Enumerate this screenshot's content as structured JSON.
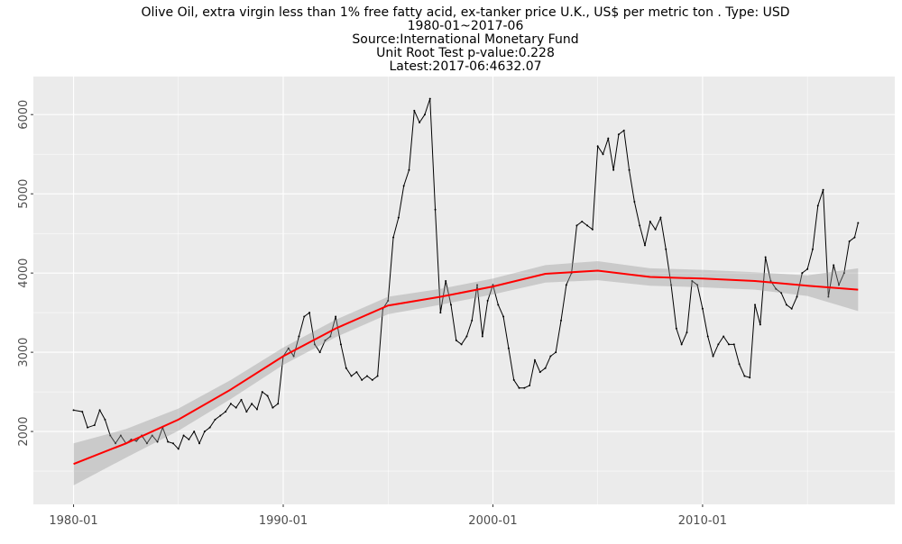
{
  "chart_data": {
    "type": "line",
    "title": [
      "Olive Oil, extra virgin less than 1% free fatty acid, ex-tanker price U.K., US$ per metric ton . Type: USD",
      "1980-01~2017-06",
      "Source:International Monetary Fund",
      "Unit Root Test p-value:0.228",
      "Latest:2017-06:4632.07"
    ],
    "xlim": [
      "1978-02",
      "2019-03"
    ],
    "xticks": [
      "1980-01",
      "1990-01",
      "2000-01",
      "2010-01"
    ],
    "ylim": [
      1080,
      6480
    ],
    "yticks": [
      2000,
      3000,
      4000,
      5000,
      6000
    ],
    "grid": true,
    "series": [
      {
        "color": "#000000",
        "x": [
          "1980-01",
          "1980-06",
          "1980-09",
          "1981-01",
          "1981-04",
          "1981-07",
          "1981-10",
          "1982-01",
          "1982-04",
          "1982-07",
          "1982-10",
          "1983-01",
          "1983-04",
          "1983-07",
          "1983-10",
          "1984-01",
          "1984-04",
          "1984-07",
          "1984-10",
          "1985-01",
          "1985-04",
          "1985-07",
          "1985-10",
          "1986-01",
          "1986-04",
          "1986-07",
          "1986-10",
          "1987-01",
          "1987-04",
          "1987-07",
          "1987-10",
          "1988-01",
          "1988-04",
          "1988-07",
          "1988-10",
          "1989-01",
          "1989-04",
          "1989-07",
          "1989-10",
          "1990-01",
          "1990-04",
          "1990-07",
          "1990-10",
          "1991-01",
          "1991-04",
          "1991-07",
          "1991-10",
          "1992-01",
          "1992-04",
          "1992-07",
          "1992-10",
          "1993-01",
          "1993-04",
          "1993-07",
          "1993-10",
          "1994-01",
          "1994-04",
          "1994-07",
          "1994-10",
          "1995-01",
          "1995-04",
          "1995-07",
          "1995-10",
          "1996-01",
          "1996-04",
          "1996-07",
          "1996-10",
          "1997-01",
          "1997-04",
          "1997-07",
          "1997-10",
          "1998-01",
          "1998-04",
          "1998-07",
          "1998-10",
          "1999-01",
          "1999-04",
          "1999-07",
          "1999-10",
          "2000-01",
          "2000-04",
          "2000-07",
          "2000-10",
          "2001-01",
          "2001-04",
          "2001-07",
          "2001-10",
          "2002-01",
          "2002-04",
          "2002-07",
          "2002-10",
          "2003-01",
          "2003-04",
          "2003-07",
          "2003-10",
          "2004-01",
          "2004-04",
          "2004-07",
          "2004-10",
          "2005-01",
          "2005-04",
          "2005-07",
          "2005-10",
          "2006-01",
          "2006-04",
          "2006-07",
          "2006-10",
          "2007-01",
          "2007-04",
          "2007-07",
          "2007-10",
          "2008-01",
          "2008-04",
          "2008-07",
          "2008-10",
          "2009-01",
          "2009-04",
          "2009-07",
          "2009-10",
          "2010-01",
          "2010-04",
          "2010-07",
          "2010-10",
          "2011-01",
          "2011-04",
          "2011-07",
          "2011-10",
          "2012-01",
          "2012-04",
          "2012-07",
          "2012-10",
          "2013-01",
          "2013-04",
          "2013-07",
          "2013-10",
          "2014-01",
          "2014-04",
          "2014-07",
          "2014-10",
          "2015-01",
          "2015-04",
          "2015-07",
          "2015-10",
          "2016-01",
          "2016-04",
          "2016-07",
          "2016-10",
          "2017-01",
          "2017-04",
          "2017-06"
        ],
        "values": [
          2270,
          2250,
          2050,
          2080,
          2270,
          2150,
          1950,
          1850,
          1950,
          1850,
          1900,
          1880,
          1950,
          1850,
          1950,
          1870,
          2050,
          1870,
          1850,
          1780,
          1950,
          1900,
          2000,
          1850,
          2000,
          2050,
          2150,
          2200,
          2250,
          2350,
          2300,
          2400,
          2250,
          2350,
          2280,
          2500,
          2450,
          2300,
          2350,
          2950,
          3050,
          2950,
          3200,
          3450,
          3500,
          3100,
          3000,
          3150,
          3200,
          3450,
          3100,
          2800,
          2700,
          2750,
          2650,
          2700,
          2650,
          2700,
          3550,
          3650,
          4450,
          4700,
          5100,
          5300,
          6050,
          5900,
          6000,
          6200,
          4800,
          3500,
          3900,
          3600,
          3150,
          3100,
          3200,
          3400,
          3850,
          3200,
          3650,
          3850,
          3600,
          3450,
          3050,
          2650,
          2550,
          2550,
          2580,
          2900,
          2750,
          2800,
          2950,
          3000,
          3400,
          3850,
          4000,
          4600,
          4650,
          4600,
          4550,
          5600,
          5500,
          5700,
          5300,
          5750,
          5800,
          5300,
          4900,
          4600,
          4350,
          4650,
          4550,
          4700,
          4300,
          3850,
          3300,
          3100,
          3250,
          3900,
          3850,
          3550,
          3200,
          2950,
          3100,
          3200,
          3100,
          3100,
          2850,
          2700,
          2680,
          3600,
          3350,
          4200,
          3900,
          3800,
          3750,
          3600,
          3550,
          3700,
          4000,
          4050,
          4300,
          4850,
          5050,
          3700,
          4100,
          3850,
          4000,
          4400,
          4450,
          4632.07
        ]
      },
      {
        "color": "#ff0000",
        "x": [
          "1980-01",
          "1982-07",
          "1985-01",
          "1987-07",
          "1990-01",
          "1992-07",
          "1995-01",
          "1997-07",
          "2000-01",
          "2002-07",
          "2005-01",
          "2007-07",
          "2010-01",
          "2012-07",
          "2015-01",
          "2017-06"
        ],
        "values": [
          1590,
          1850,
          2150,
          2530,
          2950,
          3300,
          3590,
          3700,
          3830,
          3990,
          4030,
          3950,
          3930,
          3900,
          3840,
          3790
        ],
        "upper": [
          1850,
          2030,
          2290,
          2650,
          3060,
          3410,
          3700,
          3800,
          3930,
          4100,
          4150,
          4060,
          4040,
          4010,
          3970,
          4060
        ],
        "lower": [
          1320,
          1670,
          2010,
          2410,
          2840,
          3190,
          3480,
          3600,
          3730,
          3880,
          3910,
          3840,
          3820,
          3790,
          3710,
          3520
        ]
      }
    ]
  }
}
